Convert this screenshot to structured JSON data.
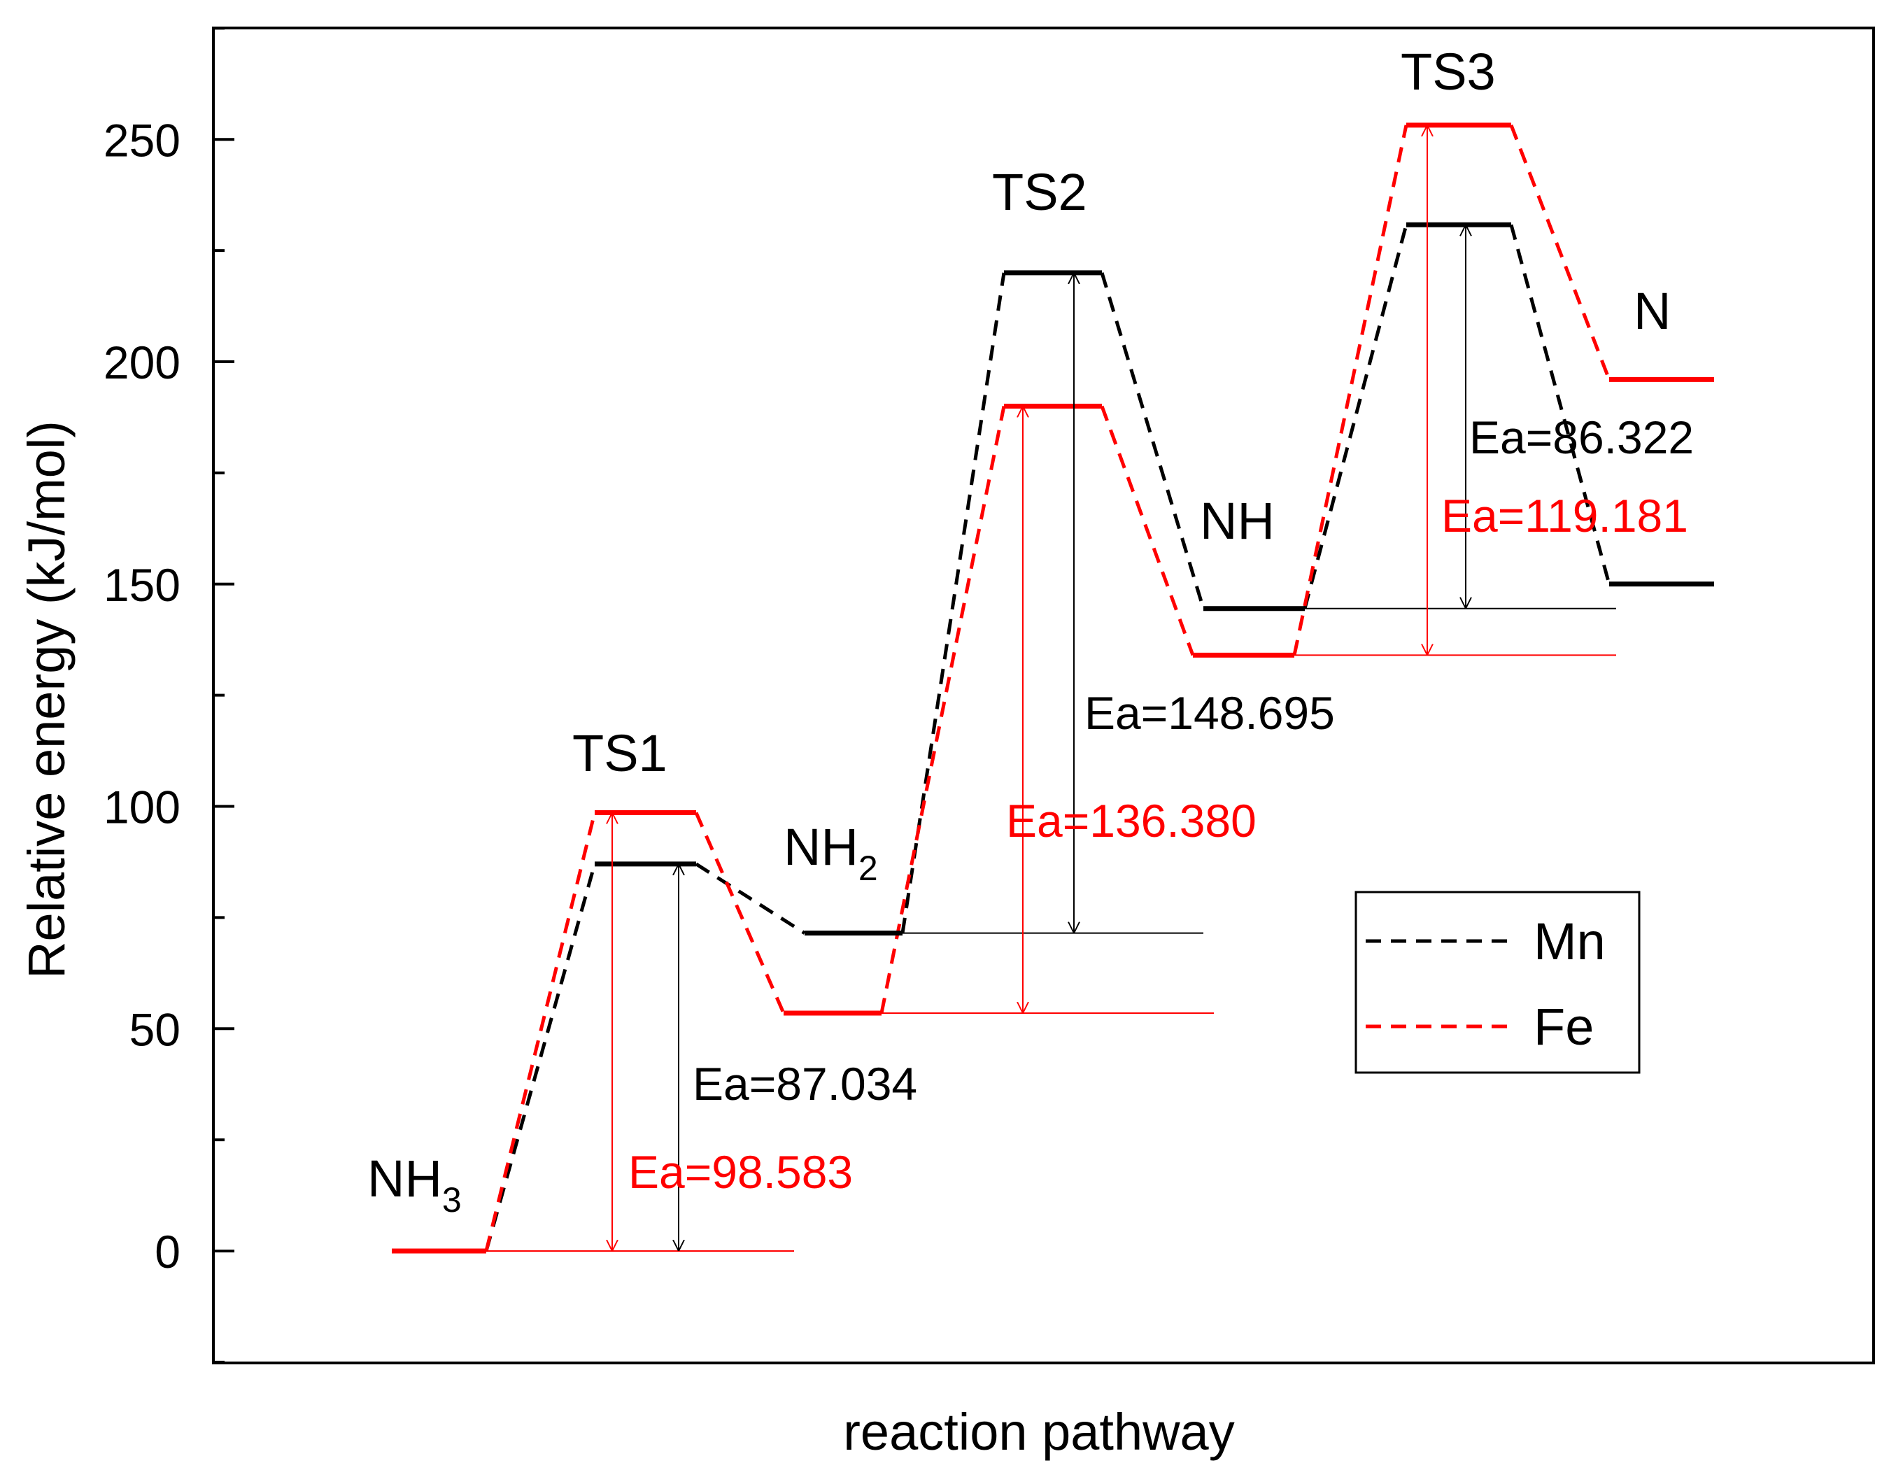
{
  "chart_data": {
    "type": "energy-profile",
    "xlabel": "reaction pathway",
    "ylabel": "Relative energy (kJ/mol)",
    "ylim": [
      -25,
      275
    ],
    "yticks": [
      0,
      50,
      100,
      150,
      200,
      250
    ],
    "legend": {
      "position": "right-middle",
      "entries": [
        "Mn",
        "Fe"
      ]
    },
    "colors": {
      "Mn": "#000000",
      "Fe": "#ff0000"
    },
    "states": [
      {
        "name": "NH3",
        "base": "NH",
        "sub": "3",
        "slot": 0
      },
      {
        "name": "TS1",
        "base": "TS1",
        "sub": "",
        "slot": 1
      },
      {
        "name": "NH2",
        "base": "NH",
        "sub": "2",
        "slot": 2
      },
      {
        "name": "TS2",
        "base": "TS2",
        "sub": "",
        "slot": 3
      },
      {
        "name": "NH",
        "base": "NH",
        "sub": "",
        "slot": 4
      },
      {
        "name": "TS3",
        "base": "TS3",
        "sub": "",
        "slot": 5
      },
      {
        "name": "N",
        "base": "N",
        "sub": "",
        "slot": 6
      }
    ],
    "series": [
      {
        "name": "Mn",
        "values": [
          0,
          87.034,
          71.5,
          220,
          144.5,
          230.8,
          150
        ]
      },
      {
        "name": "Fe",
        "values": [
          0,
          98.583,
          53.5,
          190,
          134,
          253.2,
          196
        ]
      }
    ],
    "annotations": [
      {
        "series": "Mn",
        "text": "Ea=87.034",
        "from": 0,
        "to": 1
      },
      {
        "series": "Fe",
        "text": "Ea=98.583",
        "from": 0,
        "to": 1
      },
      {
        "series": "Mn",
        "text": "Ea=148.695",
        "from": 2,
        "to": 3
      },
      {
        "series": "Fe",
        "text": "Ea=136.380",
        "from": 2,
        "to": 3
      },
      {
        "series": "Mn",
        "text": "Ea=86.322",
        "from": 4,
        "to": 5
      },
      {
        "series": "Fe",
        "text": "Ea=119.181",
        "from": 4,
        "to": 5
      }
    ]
  }
}
